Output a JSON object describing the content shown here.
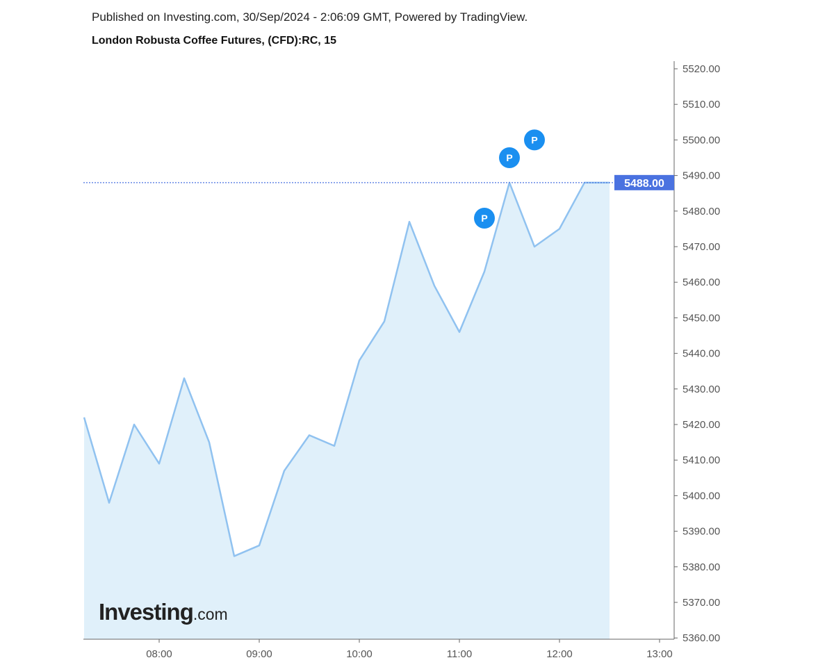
{
  "header": {
    "published": "Published on Investing.com, 30/Sep/2024 - 2:06:09 GMT, Powered by TradingView.",
    "title": "London Robusta Coffee Futures, (CFD):RC, 15"
  },
  "logo": {
    "main": "Investing",
    "suffix": ".com"
  },
  "chart_data": {
    "type": "area",
    "title": "London Robusta Coffee Futures, (CFD):RC, 15",
    "x": [
      "07:15",
      "07:30",
      "07:45",
      "08:00",
      "08:15",
      "08:30",
      "08:45",
      "09:00",
      "09:15",
      "09:30",
      "09:45",
      "10:00",
      "10:15",
      "10:30",
      "10:45",
      "11:00",
      "11:15",
      "11:30",
      "11:45",
      "12:00",
      "12:15",
      "12:30"
    ],
    "values": [
      5422,
      5398,
      5420,
      5409,
      5433,
      5415,
      5383,
      5386,
      5407,
      5417,
      5414,
      5438,
      5449,
      5477,
      5459,
      5446,
      5463,
      5488,
      5470,
      5475,
      5488,
      5488
    ],
    "xticks": [
      "08:00",
      "09:00",
      "10:00",
      "11:00",
      "12:00",
      "13:00"
    ],
    "yticks": [
      "5360.00",
      "5370.00",
      "5380.00",
      "5390.00",
      "5400.00",
      "5410.00",
      "5420.00",
      "5430.00",
      "5440.00",
      "5450.00",
      "5460.00",
      "5470.00",
      "5480.00",
      "5490.00",
      "5500.00",
      "5510.00",
      "5520.00"
    ],
    "ylim": [
      5360,
      5522
    ],
    "xlim": [
      "07:15",
      "13:05"
    ],
    "last_price": "5488.00",
    "markers": [
      {
        "label": "P",
        "time": "11:15",
        "value": 5478
      },
      {
        "label": "P",
        "time": "11:30",
        "value": 5495
      },
      {
        "label": "P",
        "time": "11:45",
        "value": 5500
      }
    ],
    "colors": {
      "line": "#90c2f0",
      "fill": "#e0f0fa",
      "price_label": "#4a72e0",
      "marker": "#1a8ff0"
    },
    "grid": false
  }
}
